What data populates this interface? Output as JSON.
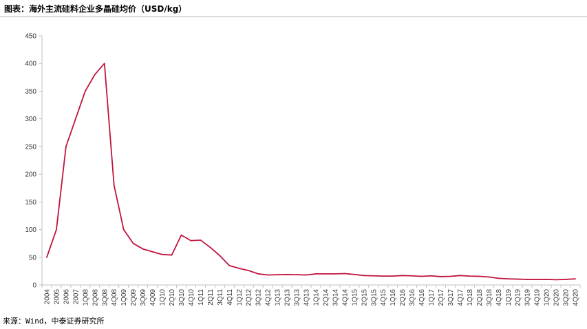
{
  "title": "图表：海外主流硅料企业多晶硅均价（USD/kg）",
  "source": "来源：Wind，中泰证券研究所",
  "colors": {
    "line": "#c0143c",
    "axis": "#bfbfbf"
  },
  "chart_data": {
    "type": "line",
    "title": "图表：海外主流硅料企业多晶硅均价（USD/kg）",
    "xlabel": "",
    "ylabel": "",
    "ylim": [
      0,
      450
    ],
    "yticks": [
      0,
      50,
      100,
      150,
      200,
      250,
      300,
      350,
      400,
      450
    ],
    "grid": false,
    "categories": [
      "2004",
      "2005",
      "2006",
      "2007",
      "1Q08",
      "2Q08",
      "3Q08",
      "4Q08",
      "1Q09",
      "2Q09",
      "3Q09",
      "4Q09",
      "1Q10",
      "2Q10",
      "3Q10",
      "4Q10",
      "1Q11",
      "2Q11",
      "3Q11",
      "4Q11",
      "1Q12",
      "2Q12",
      "3Q12",
      "4Q12",
      "1Q13",
      "2Q13",
      "3Q13",
      "4Q13",
      "1Q14",
      "2Q14",
      "3Q14",
      "4Q14",
      "1Q15",
      "2Q15",
      "3Q15",
      "4Q15",
      "1Q16",
      "2Q16",
      "3Q16",
      "4Q16",
      "1Q17",
      "2Q17",
      "3Q17",
      "4Q17",
      "1Q18",
      "2Q18",
      "3Q18",
      "4Q18",
      "1Q19",
      "2Q19",
      "3Q19",
      "4Q19",
      "1Q20",
      "2Q20",
      "3Q20",
      "4Q20"
    ],
    "series": [
      {
        "values": [
          50,
          100,
          250,
          300,
          350,
          380,
          400,
          180,
          100,
          75,
          65,
          60,
          55,
          54,
          90,
          80,
          81,
          68,
          53,
          35,
          30,
          26,
          20,
          18,
          18.5,
          18.8,
          18.5,
          18,
          20,
          20,
          20,
          20.5,
          19,
          17,
          16.5,
          16,
          16,
          17,
          16.5,
          15.5,
          16.5,
          15,
          15.5,
          17,
          16,
          15.5,
          14.5,
          12,
          11,
          10.5,
          10,
          10,
          10,
          9.5,
          10,
          11
        ]
      }
    ]
  }
}
